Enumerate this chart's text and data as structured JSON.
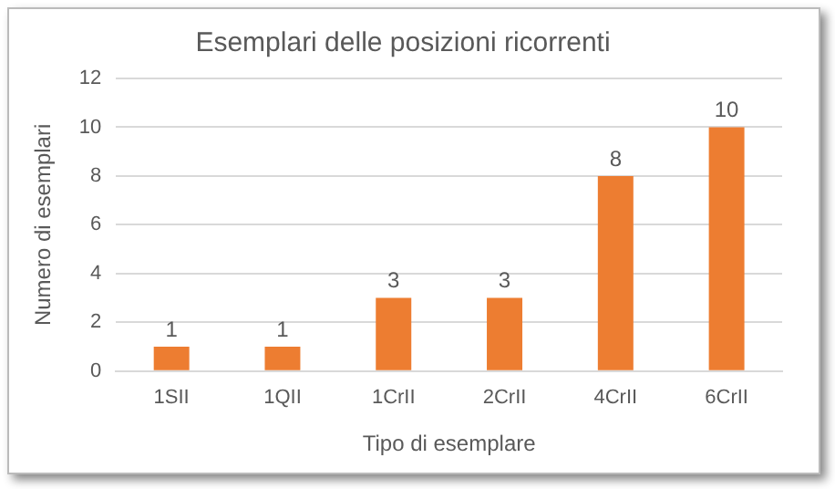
{
  "chart_data": {
    "type": "bar",
    "title": "Esemplari delle posizioni ricorrenti",
    "xlabel": "Tipo di esemplare",
    "ylabel": "Numero di esemplari",
    "categories": [
      "1SII",
      "1QII",
      "1CrII",
      "2CrII",
      "4CrII",
      "6CrII"
    ],
    "values": [
      1,
      1,
      3,
      3,
      8,
      10
    ],
    "color": "#ed7d31",
    "ylim": [
      0,
      12
    ],
    "yticks": [
      0,
      2,
      4,
      6,
      8,
      10,
      12
    ],
    "grid": "y",
    "data_labels": true
  }
}
